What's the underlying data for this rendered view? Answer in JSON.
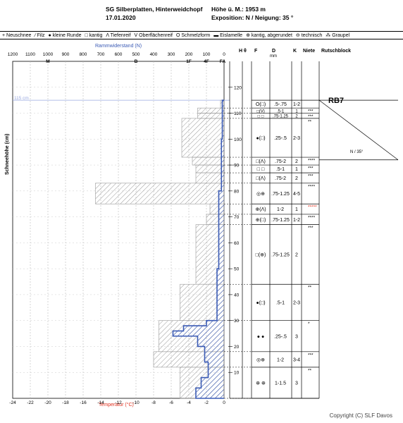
{
  "header": {
    "site": "SG Silberplatten, Hinterweidchopf",
    "date": "17.01.2020",
    "altitude": "Höhe ü. M.: 1953 m",
    "exposure": "Exposition: N / Neigung: 35 °"
  },
  "legend": [
    "+ Neuschnee",
    "⁄ Filz",
    "● kleine Runde",
    "□ kantig",
    "Λ Tiefenreif",
    "V Oberflächenreif",
    "O Schmelzform",
    "▬ Eislamelle",
    "⊕ kantig, abgerundet",
    "⊖ technisch",
    "⁂ Graupel"
  ],
  "top_axis": {
    "title": "Rammwiderstand (N)",
    "ticks": [
      "1200",
      "1100",
      "1000",
      "900",
      "800",
      "700",
      "600",
      "500",
      "400",
      "300",
      "200",
      "100",
      "0"
    ],
    "hardness_labels": [
      "M",
      "B",
      "1F",
      "4F",
      "FA"
    ]
  },
  "left_axis": {
    "title": "Schneehöhe (cm)"
  },
  "bottom_axis": {
    "title": "Temperatur (°C)",
    "ticks": [
      "-24",
      "-22",
      "-20",
      "-18",
      "-16",
      "-14",
      "-12",
      "-10",
      "-8",
      "-6",
      "-4",
      "-2",
      "0"
    ]
  },
  "snow_surface_label": "115 cm",
  "columns": {
    "H": "H",
    "theta": "θ",
    "F": "F",
    "D": "D",
    "D_unit": "mm",
    "K": "K",
    "niete": "Niete",
    "rutschblock": "Rutschblock"
  },
  "rutschblock": {
    "result": "RB7",
    "orientation": "N / 35°"
  },
  "depth_ticks": [
    "10",
    "20",
    "30",
    "40",
    "50",
    "60",
    "70",
    "80",
    "90",
    "100",
    "110",
    "120"
  ],
  "layers": [
    {
      "top": 115,
      "bottom": 112,
      "form": "O(□)",
      "size": ".5-.75",
      "k": "1-2",
      "niete": "",
      "niete_color": "#000"
    },
    {
      "top": 112,
      "bottom": 110,
      "form": "□(V)",
      "size": ".5-1",
      "k": "1",
      "niete": "***",
      "niete_color": "#000"
    },
    {
      "top": 110,
      "bottom": 108,
      "form": "□ □",
      "size": ".75-1.25",
      "k": "2",
      "niete": "***",
      "niete_color": "#000"
    },
    {
      "top": 108,
      "bottom": 93,
      "form": "●(□)",
      "size": ".25-.5",
      "k": "2-3",
      "niete": "**",
      "niete_color": "#000"
    },
    {
      "top": 93,
      "bottom": 90,
      "form": "□(Λ)",
      "size": ".75-2",
      "k": "2",
      "niete": "****",
      "niete_color": "#000"
    },
    {
      "top": 90,
      "bottom": 87,
      "form": "□ □",
      "size": ".5-1",
      "k": "1",
      "niete": "***",
      "niete_color": "#000"
    },
    {
      "top": 87,
      "bottom": 83,
      "form": "□(Λ)",
      "size": ".75-2",
      "k": "2",
      "niete": "***",
      "niete_color": "#000"
    },
    {
      "top": 83,
      "bottom": 75,
      "form": "◎⊕",
      "size": ".75-1.25",
      "k": "4-5",
      "niete": "****",
      "niete_color": "#000"
    },
    {
      "top": 75,
      "bottom": 71,
      "form": "⊕(Λ)",
      "size": "1-2",
      "k": "1",
      "niete": "*****",
      "niete_color": "#e0301e"
    },
    {
      "top": 71,
      "bottom": 67,
      "form": "⊕(□)",
      "size": ".75-1.25",
      "k": "1-2",
      "niete": "****",
      "niete_color": "#000"
    },
    {
      "top": 67,
      "bottom": 44,
      "form": "□(⊕)",
      "size": ".75-1.25",
      "k": "2",
      "niete": "***",
      "niete_color": "#000"
    },
    {
      "top": 44,
      "bottom": 30,
      "form": "●(□)",
      "size": ".5-1",
      "k": "2-3",
      "niete": "**",
      "niete_color": "#000"
    },
    {
      "top": 30,
      "bottom": 18,
      "form": "● ●",
      "size": ".25-.5",
      "k": "3",
      "niete": "*",
      "niete_color": "#000"
    },
    {
      "top": 18,
      "bottom": 12,
      "form": "◎⊕",
      "size": "1-2",
      "k": "3-4",
      "niete": "***",
      "niete_color": "#000"
    },
    {
      "top": 12,
      "bottom": 0,
      "form": "⊕ ⊕",
      "size": "1-1.5",
      "k": "3",
      "niete": "**",
      "niete_color": "#000"
    }
  ],
  "chart_data": {
    "type": "snow_profile",
    "depth_axis": {
      "title": "Schneehöhe (cm)",
      "ylim": [
        0,
        130
      ],
      "snow_height": 115
    },
    "hand_hardness_profile": {
      "x_axis": "Rammwiderstand (N)",
      "xlim": [
        0,
        1200
      ],
      "layers": [
        {
          "top": 115,
          "bottom": 112,
          "N": 20
        },
        {
          "top": 112,
          "bottom": 110,
          "N": 150
        },
        {
          "top": 110,
          "bottom": 108,
          "N": 150
        },
        {
          "top": 108,
          "bottom": 93,
          "N": 240
        },
        {
          "top": 93,
          "bottom": 90,
          "N": 180
        },
        {
          "top": 90,
          "bottom": 87,
          "N": 160
        },
        {
          "top": 87,
          "bottom": 83,
          "N": 160
        },
        {
          "top": 83,
          "bottom": 75,
          "N": 730
        },
        {
          "top": 75,
          "bottom": 71,
          "N": 80
        },
        {
          "top": 71,
          "bottom": 67,
          "N": 100
        },
        {
          "top": 67,
          "bottom": 44,
          "N": 160
        },
        {
          "top": 44,
          "bottom": 30,
          "N": 250
        },
        {
          "top": 30,
          "bottom": 18,
          "N": 370
        },
        {
          "top": 18,
          "bottom": 12,
          "N": 400
        },
        {
          "top": 12,
          "bottom": 0,
          "N": 250
        }
      ]
    },
    "ram_profile": {
      "x_axis": "Rammwiderstand (N)",
      "color": "#3b5bb5",
      "layers": [
        {
          "top": 115,
          "bottom": 100,
          "N": 10
        },
        {
          "top": 100,
          "bottom": 80,
          "N": 15
        },
        {
          "top": 80,
          "bottom": 50,
          "N": 30
        },
        {
          "top": 50,
          "bottom": 30,
          "N": 40
        },
        {
          "top": 30,
          "bottom": 28,
          "N": 100
        },
        {
          "top": 28,
          "bottom": 26,
          "N": 230
        },
        {
          "top": 26,
          "bottom": 24,
          "N": 290
        },
        {
          "top": 24,
          "bottom": 20,
          "N": 150
        },
        {
          "top": 20,
          "bottom": 14,
          "N": 110
        },
        {
          "top": 14,
          "bottom": 8,
          "N": 90
        },
        {
          "top": 8,
          "bottom": 4,
          "N": 130
        },
        {
          "top": 4,
          "bottom": 0,
          "N": 160
        }
      ]
    },
    "temperature_profile": {
      "x_axis": "Temperatur (°C)",
      "xlim": [
        -24,
        0
      ]
    }
  }
}
